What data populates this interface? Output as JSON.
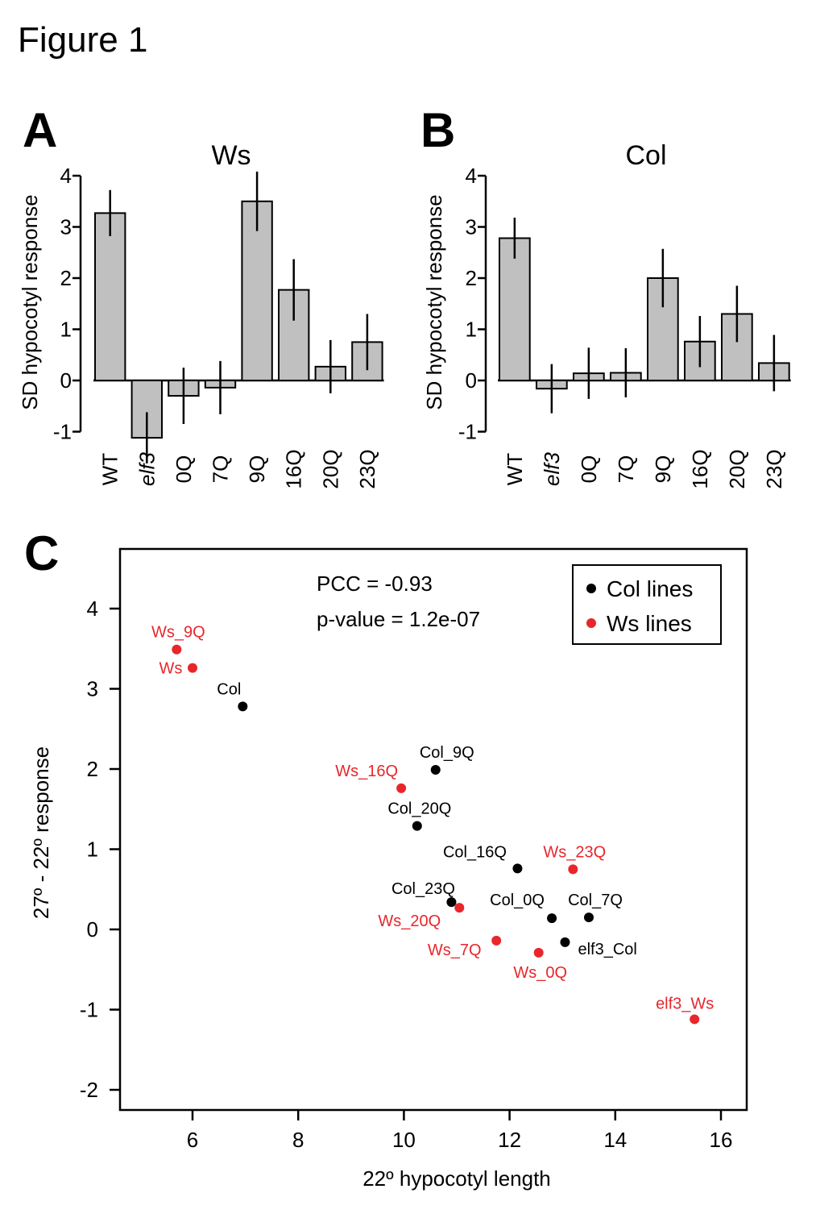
{
  "figure_title": "Figure 1",
  "colors": {
    "col": "#000000",
    "ws": "#e8262c",
    "bar": "#c0c0c0"
  },
  "chart_data": [
    {
      "panel": "A",
      "type": "bar",
      "title": "Ws",
      "ylabel": "SD hypocotyl response",
      "ylim": [
        -1,
        4
      ],
      "yticks": [
        "-1",
        "0",
        "1",
        "2",
        "3",
        "4"
      ],
      "categories": [
        "WT",
        "elf3",
        "0Q",
        "7Q",
        "9Q",
        "16Q",
        "20Q",
        "23Q"
      ],
      "values": [
        3.27,
        -1.12,
        -0.3,
        -0.14,
        3.5,
        1.77,
        0.27,
        0.75
      ],
      "error": [
        0.45,
        0.5,
        0.55,
        0.52,
        0.58,
        0.6,
        0.52,
        0.55
      ],
      "italic_categories": [
        "elf3"
      ]
    },
    {
      "panel": "B",
      "type": "bar",
      "title": "Col",
      "ylabel": "SD hypocotyl response",
      "ylim": [
        -1,
        4
      ],
      "yticks": [
        "-1",
        "0",
        "1",
        "2",
        "3",
        "4"
      ],
      "categories": [
        "WT",
        "elf3",
        "0Q",
        "7Q",
        "9Q",
        "16Q",
        "20Q",
        "23Q"
      ],
      "values": [
        2.78,
        -0.16,
        0.14,
        0.15,
        2.0,
        0.76,
        1.3,
        0.34
      ],
      "error": [
        0.4,
        0.48,
        0.5,
        0.48,
        0.57,
        0.5,
        0.55,
        0.55
      ],
      "italic_categories": [
        "elf3"
      ]
    },
    {
      "panel": "C",
      "type": "scatter",
      "xlabel": "22º hypocotyl length",
      "ylabel": "27º - 22º response",
      "xlim": [
        4.3,
        16.5
      ],
      "ylim": [
        -2.25,
        4.7
      ],
      "xticks": [
        "6",
        "8",
        "10",
        "12",
        "14",
        "16"
      ],
      "yticks": [
        "-2",
        "-1",
        "0",
        "1",
        "2",
        "3",
        "4"
      ],
      "annotations": [
        "PCC = -0.93",
        "p-value = 1.2e-07"
      ],
      "legend": {
        "position": "top-right",
        "entries": [
          "Col lines",
          "Ws lines"
        ]
      },
      "series": [
        {
          "name": "Col lines",
          "color": "#000000",
          "points": [
            {
              "label": "Col",
              "x": 6.95,
              "y": 2.78
            },
            {
              "label": "Col_9Q",
              "x": 10.6,
              "y": 1.99
            },
            {
              "label": "Col_20Q",
              "x": 10.25,
              "y": 1.29
            },
            {
              "label": "Col_16Q",
              "x": 12.15,
              "y": 0.76
            },
            {
              "label": "Col_23Q",
              "x": 10.9,
              "y": 0.34
            },
            {
              "label": "Col_0Q",
              "x": 12.8,
              "y": 0.14
            },
            {
              "label": "Col_7Q",
              "x": 13.5,
              "y": 0.15
            },
            {
              "label": "elf3_Col",
              "x": 13.05,
              "y": -0.16
            }
          ]
        },
        {
          "name": "Ws lines",
          "color": "#e8262c",
          "points": [
            {
              "label": "Ws_9Q",
              "x": 5.7,
              "y": 3.49
            },
            {
              "label": "Ws",
              "x": 6.0,
              "y": 3.26
            },
            {
              "label": "Ws_16Q",
              "x": 9.95,
              "y": 1.76
            },
            {
              "label": "Ws_23Q",
              "x": 13.2,
              "y": 0.75
            },
            {
              "label": "Ws_20Q",
              "x": 11.05,
              "y": 0.27
            },
            {
              "label": "Ws_7Q",
              "x": 11.75,
              "y": -0.14
            },
            {
              "label": "Ws_0Q",
              "x": 12.55,
              "y": -0.29
            },
            {
              "label": "elf3_Ws",
              "x": 15.5,
              "y": -1.12
            }
          ]
        }
      ]
    }
  ]
}
